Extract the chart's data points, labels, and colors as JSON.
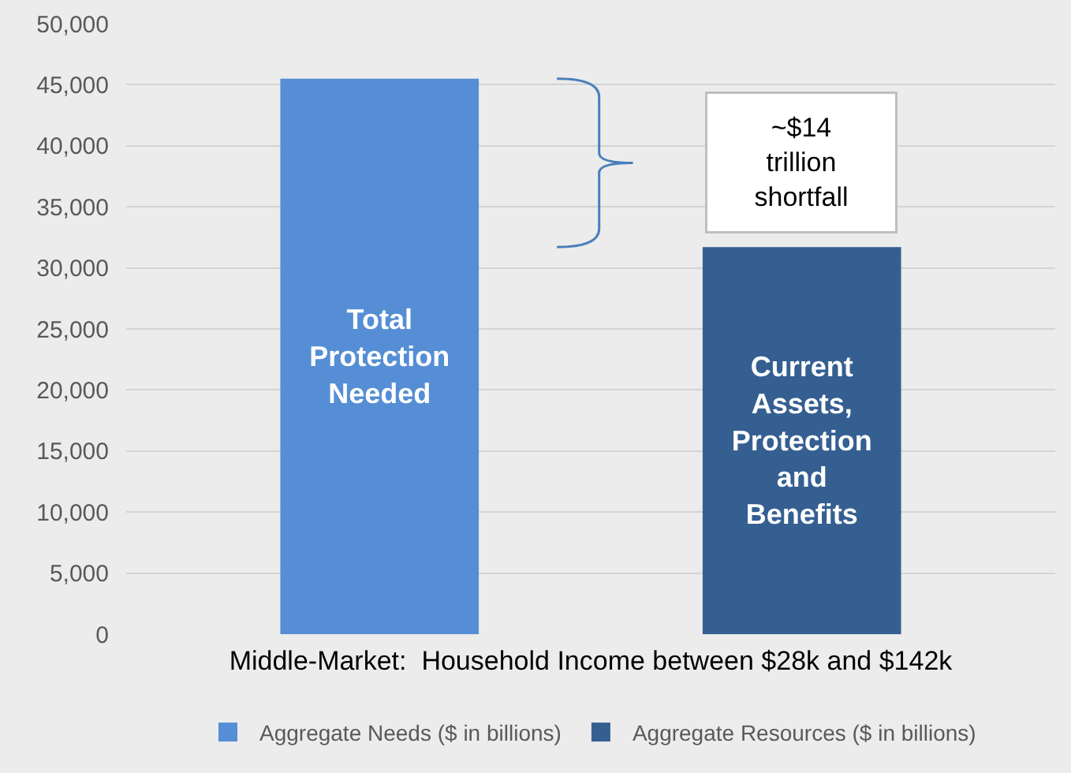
{
  "chart_data": {
    "type": "bar",
    "categories": [
      null,
      null
    ],
    "series": [
      {
        "name": "Aggregate Needs ($ in billions)",
        "color": "#558ed5",
        "values": [
          45500,
          null
        ],
        "value_labels": [
          "Total Protection Needed",
          null
        ]
      },
      {
        "name": "Aggregate Resources ($ in billions)",
        "color": "#355f91",
        "values": [
          null,
          31700
        ],
        "value_labels": [
          null,
          "Current Assets, Protection and Benefits"
        ]
      }
    ],
    "xlabel": "Middle-Market:  Household Income between $28k and $142k",
    "annotations": [
      "~$14 trillion shortfall"
    ],
    "ylim": [
      0,
      50000
    ],
    "yticks": [
      {
        "value": 0,
        "label": "0"
      },
      {
        "value": 5000,
        "label": "5,000"
      },
      {
        "value": 10000,
        "label": "10,000"
      },
      {
        "value": 15000,
        "label": "15,000"
      },
      {
        "value": 20000,
        "label": "20,000"
      },
      {
        "value": 25000,
        "label": "25,000"
      },
      {
        "value": 30000,
        "label": "30,000"
      },
      {
        "value": 35000,
        "label": "35,000"
      },
      {
        "value": 40000,
        "label": "40,000"
      },
      {
        "value": 45000,
        "label": "45,000"
      },
      {
        "value": 50000,
        "label": "50,000"
      }
    ],
    "grid": "y",
    "legend": "bottom"
  }
}
